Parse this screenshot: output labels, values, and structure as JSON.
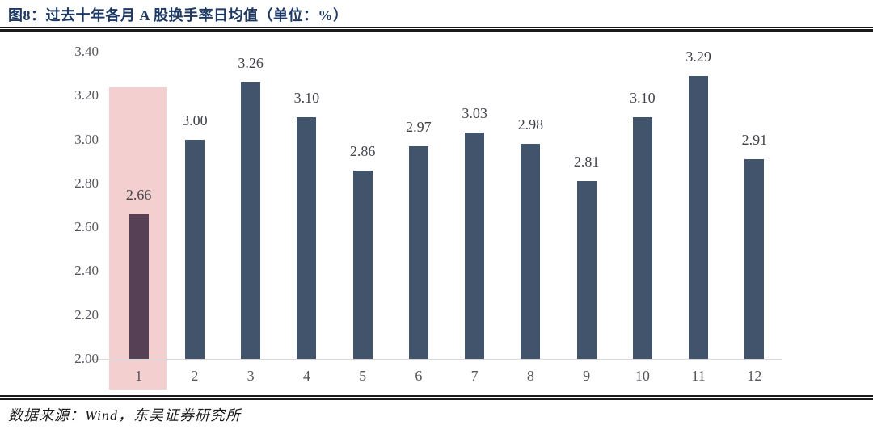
{
  "header": {
    "title": "图8：过去十年各月 A 股换手率日均值（单位：%）"
  },
  "footer": {
    "source": "数据来源：Wind，东吴证券研究所"
  },
  "chart_data": {
    "type": "bar",
    "title": "过去十年各月 A 股换手率日均值",
    "unit": "%",
    "categories": [
      "1",
      "2",
      "3",
      "4",
      "5",
      "6",
      "7",
      "8",
      "9",
      "10",
      "11",
      "12"
    ],
    "values": [
      2.66,
      3.0,
      3.26,
      3.1,
      2.86,
      2.97,
      3.03,
      2.98,
      2.81,
      3.1,
      3.29,
      2.91
    ],
    "highlight_index": 0,
    "xlabel": "",
    "ylabel": "",
    "ylim": [
      2.0,
      3.4
    ],
    "yticks": [
      2.0,
      2.2,
      2.4,
      2.6,
      2.8,
      3.0,
      3.2,
      3.4
    ],
    "grid": false,
    "legend_position": "none",
    "data_labels": true,
    "colors": {
      "bar": "#42546C",
      "highlight_bar": "#564056",
      "highlight_band": "#F3CFD0",
      "title": "#1E3A64",
      "data_label": "#43454D",
      "tick_label": "#54565C",
      "axis_line": "#D9D9D9",
      "rule": "#1A1A1A"
    }
  }
}
